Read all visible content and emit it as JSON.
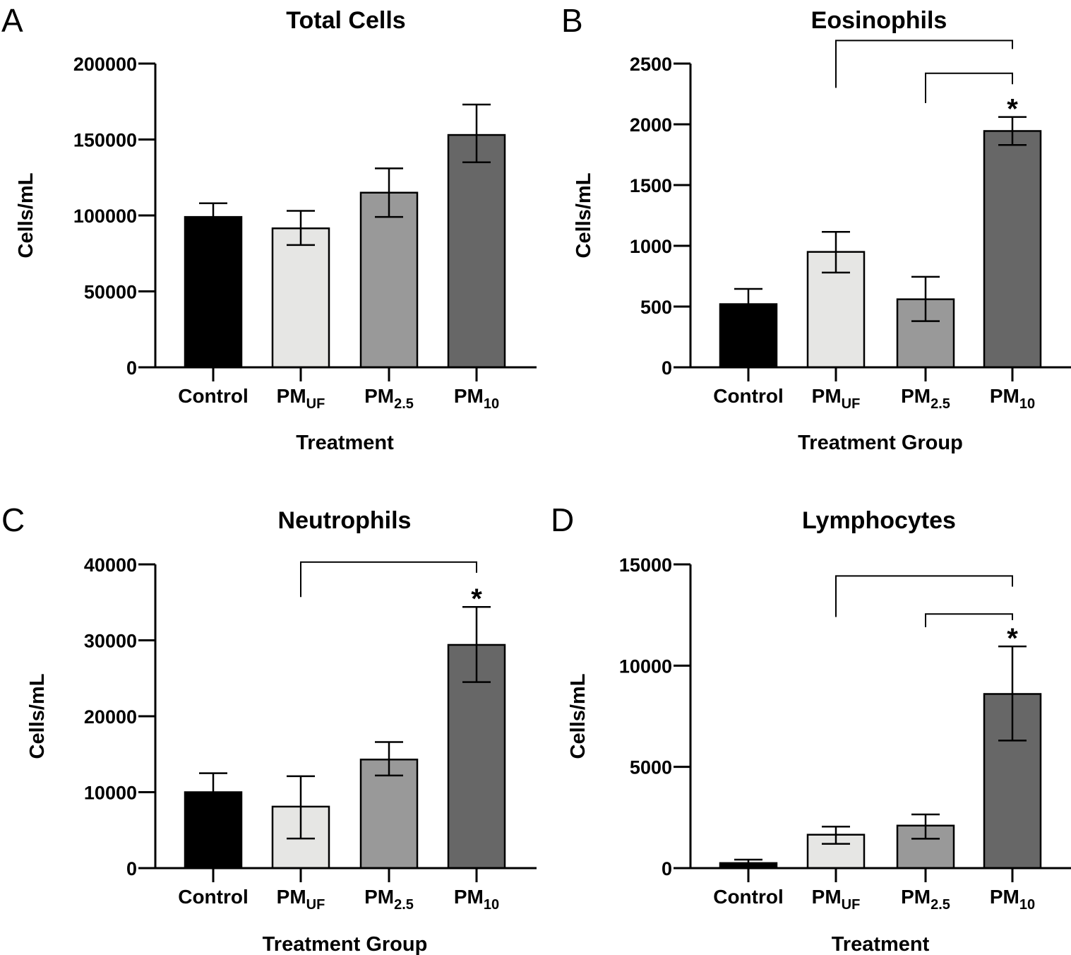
{
  "chart_data": [
    {
      "type": "bar",
      "panel": "A",
      "title": "Total Cells",
      "xlabel": "Treatment",
      "ylabel": "Cells/mL",
      "ylim": [
        0,
        200000
      ],
      "yticks": [
        0,
        50000,
        100000,
        150000,
        200000
      ],
      "ytick_labels": [
        "0",
        "50000",
        "100000",
        "150000",
        "200000"
      ],
      "categories": [
        {
          "main": "Control",
          "sub": ""
        },
        {
          "main": "PM",
          "sub": "UF"
        },
        {
          "main": "PM",
          "sub": "2.5"
        },
        {
          "main": "PM",
          "sub": "10"
        }
      ],
      "values": [
        99000,
        91500,
        115000,
        153000
      ],
      "error_upper": [
        108000,
        103000,
        131000,
        173000
      ],
      "error_lower": [
        null,
        80500,
        99000,
        135000
      ],
      "colors": [
        "#000000",
        "#e6e6e4",
        "#999999",
        "#676767"
      ],
      "significance": []
    },
    {
      "type": "bar",
      "panel": "B",
      "title": "Eosinophils",
      "xlabel": "Treatment Group",
      "ylabel": "Cells/mL",
      "ylim": [
        0,
        2500
      ],
      "yticks": [
        0,
        500,
        1000,
        1500,
        2000,
        2500
      ],
      "ytick_labels": [
        "0",
        "500",
        "1000",
        "1500",
        "2000",
        "2500"
      ],
      "categories": [
        {
          "main": "Control",
          "sub": ""
        },
        {
          "main": "PM",
          "sub": "UF"
        },
        {
          "main": "PM",
          "sub": "2.5"
        },
        {
          "main": "PM",
          "sub": "10"
        }
      ],
      "values": [
        520,
        950,
        560,
        1945
      ],
      "error_upper": [
        645,
        1115,
        745,
        2060
      ],
      "error_lower": [
        null,
        780,
        380,
        1830
      ],
      "colors": [
        "#000000",
        "#e6e6e4",
        "#999999",
        "#676767"
      ],
      "significance": [
        {
          "from": 1,
          "to": 3,
          "level": 2690,
          "drop_from": 2300,
          "drop_to": 2620
        },
        {
          "from": 2,
          "to": 3,
          "level": 2420,
          "drop_from": 2175,
          "drop_to": 2330
        }
      ],
      "star": {
        "category": 3,
        "label": "*"
      }
    },
    {
      "type": "bar",
      "panel": "C",
      "title": "Neutrophils",
      "xlabel": "Treatment Group",
      "ylabel": "Cells/mL",
      "ylim": [
        0,
        40000
      ],
      "yticks": [
        0,
        10000,
        20000,
        30000,
        40000
      ],
      "ytick_labels": [
        "0",
        "10000",
        "20000",
        "30000",
        "40000"
      ],
      "categories": [
        {
          "main": "Control",
          "sub": ""
        },
        {
          "main": "PM",
          "sub": "UF"
        },
        {
          "main": "PM",
          "sub": "2.5"
        },
        {
          "main": "PM",
          "sub": "10"
        }
      ],
      "values": [
        10000,
        8100,
        14300,
        29400
      ],
      "error_upper": [
        12500,
        12100,
        16600,
        34400
      ],
      "error_lower": [
        null,
        3900,
        12200,
        24500
      ],
      "colors": [
        "#000000",
        "#e6e6e4",
        "#999999",
        "#676767"
      ],
      "significance": [
        {
          "from": 1,
          "to": 3,
          "level": 40300,
          "drop_from": 35700,
          "drop_to": 38900
        }
      ],
      "star": {
        "category": 3,
        "label": "*"
      }
    },
    {
      "type": "bar",
      "panel": "D",
      "title": "Lymphocytes",
      "xlabel": "Treatment",
      "ylabel": "Cells/mL",
      "ylim": [
        0,
        15000
      ],
      "yticks": [
        0,
        5000,
        10000,
        15000
      ],
      "ytick_labels": [
        "0",
        "5000",
        "10000",
        "15000"
      ],
      "categories": [
        {
          "main": "Control",
          "sub": ""
        },
        {
          "main": "PM",
          "sub": "UF"
        },
        {
          "main": "PM",
          "sub": "2.5"
        },
        {
          "main": "PM",
          "sub": "10"
        }
      ],
      "values": [
        250,
        1650,
        2100,
        8600
      ],
      "error_upper": [
        420,
        2050,
        2650,
        10950
      ],
      "error_lower": [
        null,
        1200,
        1450,
        6300
      ],
      "colors": [
        "#000000",
        "#e6e6e4",
        "#999999",
        "#676767"
      ],
      "significance": [
        {
          "from": 1,
          "to": 3,
          "level": 14430,
          "drop_from": 12400,
          "drop_to": 13900
        },
        {
          "from": 2,
          "to": 3,
          "level": 12550,
          "drop_from": 11900,
          "drop_to": 12250
        }
      ],
      "star": {
        "category": 3,
        "label": "*"
      }
    }
  ]
}
